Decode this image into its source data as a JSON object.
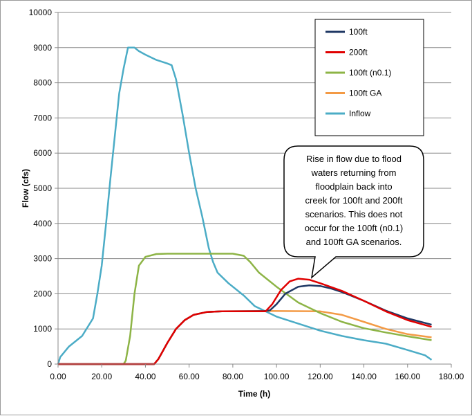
{
  "chart_data": {
    "type": "line",
    "title": "",
    "xlabel": "Time (h)",
    "ylabel": "Flow (cfs)",
    "xlim": [
      0,
      180
    ],
    "ylim": [
      0,
      10000
    ],
    "xticks": [
      "0.00",
      "20.00",
      "40.00",
      "60.00",
      "80.00",
      "100.00",
      "120.00",
      "140.00",
      "160.00",
      "180.00"
    ],
    "yticks": [
      "0",
      "1000",
      "2000",
      "3000",
      "4000",
      "5000",
      "6000",
      "7000",
      "8000",
      "9000",
      "10000"
    ],
    "grid": "horizontal",
    "legend_position": "top-right",
    "annotation": [
      "Rise in flow due to flood",
      "waters returning  from",
      "floodplain back into",
      "creek for 100ft and 200ft",
      "scenarios.  This does not",
      "occur for the 100ft (n0.1)",
      "and 100ft GA scenarios."
    ],
    "series": [
      {
        "name": "100ft",
        "color": "#1f3864",
        "points": [
          [
            0,
            0
          ],
          [
            44,
            0
          ],
          [
            46,
            150
          ],
          [
            50,
            600
          ],
          [
            54,
            1000
          ],
          [
            58,
            1250
          ],
          [
            62,
            1400
          ],
          [
            68,
            1480
          ],
          [
            75,
            1500
          ],
          [
            95,
            1510
          ],
          [
            97,
            1530
          ],
          [
            100,
            1700
          ],
          [
            104,
            2000
          ],
          [
            110,
            2200
          ],
          [
            115,
            2240
          ],
          [
            120,
            2220
          ],
          [
            125,
            2150
          ],
          [
            130,
            2050
          ],
          [
            140,
            1800
          ],
          [
            150,
            1520
          ],
          [
            160,
            1300
          ],
          [
            171,
            1120
          ]
        ]
      },
      {
        "name": "200ft",
        "color": "#e00000",
        "points": [
          [
            0,
            0
          ],
          [
            44,
            0
          ],
          [
            46,
            150
          ],
          [
            50,
            600
          ],
          [
            54,
            1000
          ],
          [
            58,
            1250
          ],
          [
            62,
            1400
          ],
          [
            68,
            1480
          ],
          [
            75,
            1500
          ],
          [
            95,
            1500
          ],
          [
            98,
            1700
          ],
          [
            102,
            2100
          ],
          [
            106,
            2350
          ],
          [
            110,
            2430
          ],
          [
            115,
            2400
          ],
          [
            120,
            2300
          ],
          [
            130,
            2080
          ],
          [
            140,
            1800
          ],
          [
            150,
            1500
          ],
          [
            160,
            1250
          ],
          [
            171,
            1060
          ]
        ]
      },
      {
        "name": "100ft (n0.1)",
        "color": "#8db446",
        "points": [
          [
            0,
            0
          ],
          [
            30,
            0
          ],
          [
            31,
            100
          ],
          [
            33,
            800
          ],
          [
            35,
            2000
          ],
          [
            37,
            2800
          ],
          [
            40,
            3050
          ],
          [
            45,
            3130
          ],
          [
            50,
            3140
          ],
          [
            80,
            3140
          ],
          [
            85,
            3080
          ],
          [
            88,
            2900
          ],
          [
            92,
            2600
          ],
          [
            100,
            2200
          ],
          [
            110,
            1750
          ],
          [
            120,
            1450
          ],
          [
            130,
            1200
          ],
          [
            140,
            1020
          ],
          [
            150,
            900
          ],
          [
            160,
            790
          ],
          [
            171,
            680
          ]
        ]
      },
      {
        "name": "100ft GA",
        "color": "#f39a45",
        "points": [
          [
            0,
            0
          ],
          [
            44,
            0
          ],
          [
            46,
            150
          ],
          [
            50,
            600
          ],
          [
            54,
            1000
          ],
          [
            58,
            1250
          ],
          [
            62,
            1400
          ],
          [
            68,
            1480
          ],
          [
            75,
            1500
          ],
          [
            95,
            1510
          ],
          [
            120,
            1500
          ],
          [
            130,
            1400
          ],
          [
            140,
            1200
          ],
          [
            150,
            1000
          ],
          [
            160,
            850
          ],
          [
            171,
            760
          ]
        ]
      },
      {
        "name": "Inflow",
        "color": "#4bacc6",
        "points": [
          [
            0,
            0
          ],
          [
            1,
            200
          ],
          [
            3,
            350
          ],
          [
            5,
            500
          ],
          [
            8,
            650
          ],
          [
            11,
            800
          ],
          [
            14,
            1100
          ],
          [
            16,
            1300
          ],
          [
            18,
            2000
          ],
          [
            20,
            2800
          ],
          [
            22,
            4000
          ],
          [
            24,
            5300
          ],
          [
            26,
            6500
          ],
          [
            28,
            7700
          ],
          [
            30,
            8400
          ],
          [
            32,
            9000
          ],
          [
            35,
            9000
          ],
          [
            37,
            8900
          ],
          [
            40,
            8800
          ],
          [
            45,
            8650
          ],
          [
            50,
            8550
          ],
          [
            52,
            8500
          ],
          [
            54,
            8100
          ],
          [
            57,
            7100
          ],
          [
            60,
            6000
          ],
          [
            63,
            5000
          ],
          [
            66,
            4200
          ],
          [
            69,
            3300
          ],
          [
            71,
            2900
          ],
          [
            73,
            2600
          ],
          [
            78,
            2300
          ],
          [
            85,
            1950
          ],
          [
            90,
            1650
          ],
          [
            95,
            1500
          ],
          [
            100,
            1350
          ],
          [
            110,
            1150
          ],
          [
            120,
            950
          ],
          [
            130,
            800
          ],
          [
            140,
            680
          ],
          [
            150,
            580
          ],
          [
            160,
            400
          ],
          [
            168,
            250
          ],
          [
            171,
            120
          ]
        ]
      }
    ]
  }
}
